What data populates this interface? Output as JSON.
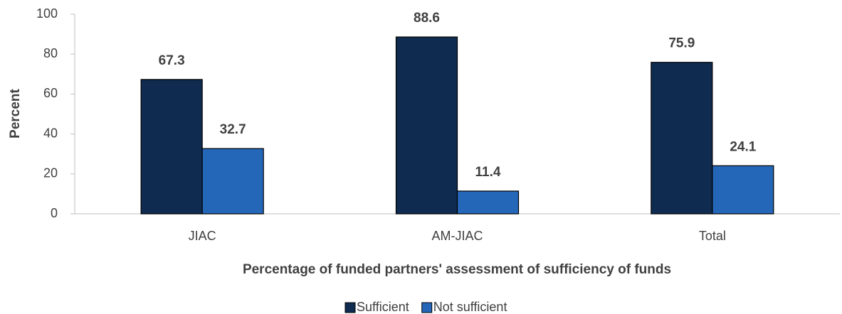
{
  "chart_data": {
    "type": "bar",
    "xlabel": "Percentage of funded partners' assessment of sufficiency of funds",
    "ylabel": "Percent",
    "categories": [
      "JIAC",
      "AM-JIAC",
      "Total"
    ],
    "series": [
      {
        "name": "Sufficient",
        "color": "#0f2b50",
        "values": [
          67.3,
          88.6,
          75.9
        ]
      },
      {
        "name": "Not sufficient",
        "color": "#2467b9",
        "values": [
          32.7,
          11.4,
          24.1
        ]
      }
    ],
    "ylim": [
      0,
      100
    ],
    "yticks": [
      0,
      20,
      40,
      60,
      80,
      100
    ],
    "grid": false,
    "legend": "bottom"
  }
}
